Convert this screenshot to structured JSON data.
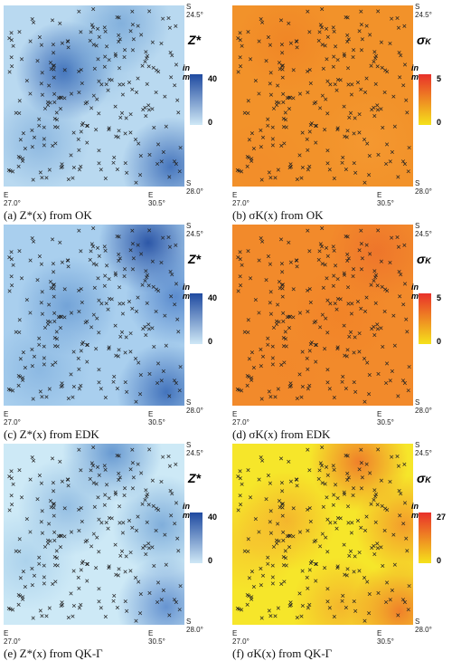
{
  "coords": {
    "lat_top": "S 24.5°",
    "lat_bottom": "S 28.0°",
    "lon_left": "E 27.0°",
    "lon_right": "E 30.5°"
  },
  "legend": {
    "units": "in mm",
    "z_symbol": "Z*",
    "sigma_main": "σ",
    "sigma_sub": "K"
  },
  "colors": {
    "blue_low": "#cfe8f6",
    "blue_high": "#1f4aa0",
    "sigma_low": "#f5e21b",
    "sigma_high": "#e8302a",
    "marker": "#222222"
  },
  "panels": [
    {
      "id": "a",
      "caption": "(a)   Z*(x) from OK",
      "type": "Z",
      "legend_max": "40",
      "legend_min": "0",
      "base": "#b9d9f0"
    },
    {
      "id": "b",
      "caption": "(b)   σK(x) from OK",
      "type": "sigma",
      "legend_max": "5",
      "legend_min": "0",
      "base": "#f2922a"
    },
    {
      "id": "c",
      "caption": "(c)   Z*(x) from EDK",
      "type": "Z",
      "legend_max": "40",
      "legend_min": "0",
      "base": "#a9cfee"
    },
    {
      "id": "d",
      "caption": "(d)   σK(x) from EDK",
      "type": "sigma",
      "legend_max": "5",
      "legend_min": "0",
      "base": "#f28a2b"
    },
    {
      "id": "e",
      "caption": "(e)   Z*(x) from QK-Γ",
      "type": "Z",
      "legend_max": "40",
      "legend_min": "0",
      "base": "#cde9f6"
    },
    {
      "id": "f",
      "caption": "(f)   σK(x) from QK-Γ",
      "type": "sigma",
      "legend_max": "27",
      "legend_min": "0",
      "base": "#f6e62a"
    }
  ]
}
